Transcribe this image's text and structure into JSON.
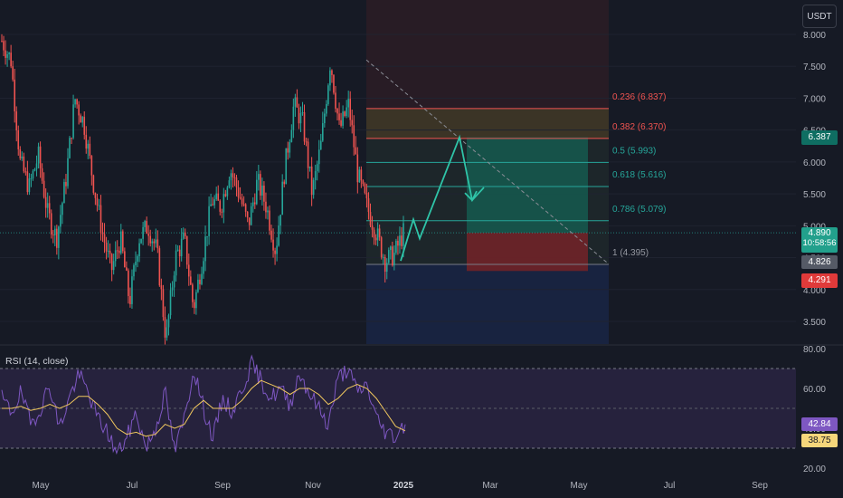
{
  "currency_button": "USDT",
  "rsi_title": "RSI (14, close)",
  "price_tags": {
    "target": "6.387",
    "last": "4.890",
    "countdown": "10:58:56",
    "open": "4.826",
    "stop": "4.291"
  },
  "rsi_tags": {
    "rsi": "42.84",
    "ma": "38.75"
  },
  "colors": {
    "background": "#161a25",
    "up": "#26a69a",
    "down": "#ef5350",
    "rsi_line": "#7e57c2",
    "rsi_ma": "#f0c75e",
    "fib_line": "#ef5350",
    "fib_green": "#26a69a",
    "tp_zone": "#16544b",
    "sl_zone": "#6b2328",
    "forecast_arrow": "#2fc4a8",
    "rsi_band": "#2a2444",
    "rsi_tag": "#7e57c2",
    "rsi_ma_tag": "#f5d67b"
  },
  "chart_data": [
    {
      "type": "candlestick",
      "title": "",
      "y_axis": {
        "ticks": [
          "3.500",
          "4.000",
          "4.500",
          "5.000",
          "5.500",
          "6.000",
          "6.500",
          "7.000",
          "7.500",
          "8.000"
        ],
        "range": [
          3.2,
          8.25
        ]
      },
      "x_axis": {
        "ticks": [
          "May",
          "Jul",
          "Sep",
          "Nov",
          "2025",
          "Mar",
          "May",
          "Jul",
          "Sep"
        ]
      },
      "fib_retracement": [
        {
          "level": 0.236,
          "price": 6.837,
          "label": "0.236 (6.837)"
        },
        {
          "level": 0.382,
          "price": 6.37,
          "label": "0.382 (6.370)"
        },
        {
          "level": 0.5,
          "price": 5.993,
          "label": "0.5 (5.993)"
        },
        {
          "level": 0.618,
          "price": 5.616,
          "label": "0.618 (5.616)"
        },
        {
          "level": 0.786,
          "price": 5.079,
          "label": "0.786 (5.079)"
        },
        {
          "level": 1,
          "price": 4.395,
          "label": "1 (4.395)"
        }
      ],
      "position": {
        "entry": 4.89,
        "take_profit": 6.387,
        "stop_loss": 4.291
      },
      "trendline": {
        "from": 7.6,
        "to": 4.4
      },
      "forecast_path": [
        4.45,
        5.1,
        4.8,
        6.387,
        5.4,
        5.6
      ],
      "price_path": [
        7.9,
        7.6,
        6.0,
        5.6,
        6.1,
        5.2,
        4.8,
        5.7,
        7.0,
        6.6,
        5.7,
        4.9,
        4.3,
        4.8,
        3.8,
        4.8,
        5.0,
        4.6,
        3.2,
        4.5,
        4.8,
        3.7,
        4.5,
        5.4,
        5.3,
        5.9,
        5.5,
        5.0,
        5.7,
        5.3,
        4.6,
        5.9,
        6.9,
        6.6,
        5.5,
        6.3,
        7.6,
        6.5,
        6.9,
        5.8,
        5.3,
        4.9,
        4.45,
        4.55,
        4.89
      ],
      "last_price": 4.89
    },
    {
      "type": "line",
      "title": "RSI (14, close)",
      "y_axis": {
        "ticks": [
          "20.00",
          "40.00",
          "60.00",
          "80.00"
        ],
        "range": [
          20,
          80
        ],
        "band": [
          30,
          70
        ]
      },
      "series": [
        {
          "values": [
            55,
            48,
            58,
            42,
            50,
            62,
            40,
            55,
            67,
            58,
            45,
            38,
            27,
            35,
            48,
            30,
            40,
            58,
            28,
            45,
            70,
            50,
            35,
            55,
            48,
            60,
            72,
            64,
            55,
            60,
            52,
            68,
            58,
            50,
            42,
            65,
            70,
            58,
            62,
            45,
            38,
            36,
            42.84
          ]
        },
        {
          "values": [
            50,
            50,
            51,
            49,
            50,
            52,
            50,
            52,
            56,
            56,
            52,
            47,
            40,
            37,
            38,
            36,
            37,
            42,
            40,
            42,
            50,
            54,
            50,
            50,
            50,
            54,
            60,
            64,
            62,
            60,
            57,
            60,
            60,
            57,
            52,
            55,
            60,
            62,
            60,
            55,
            48,
            41,
            38.75
          ]
        }
      ],
      "last_values": {
        "rsi": 42.84,
        "ma": 38.75
      }
    }
  ]
}
